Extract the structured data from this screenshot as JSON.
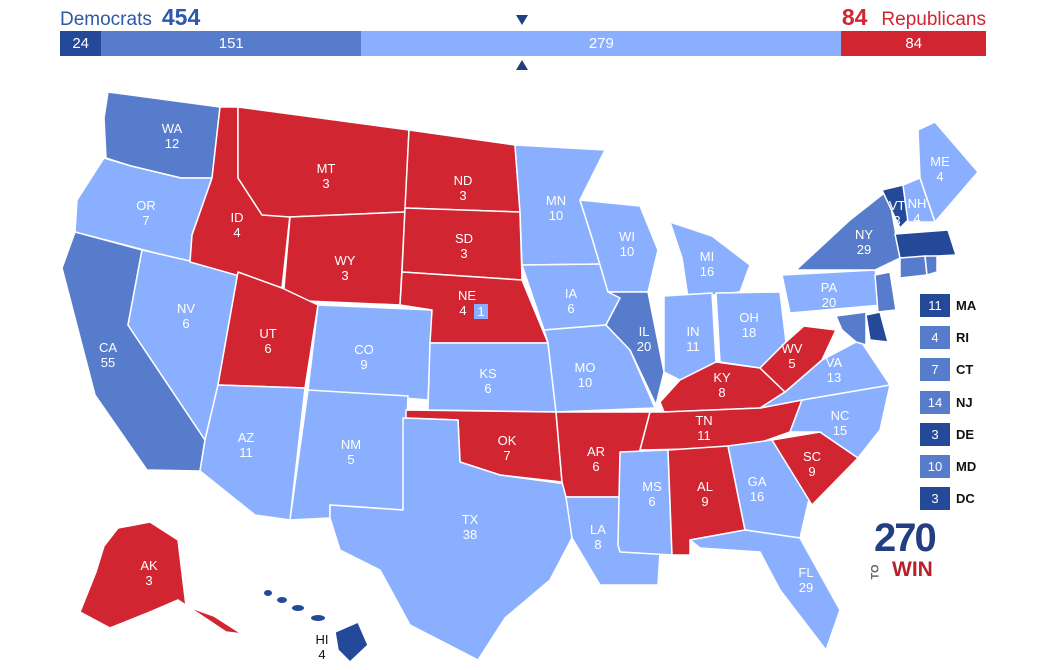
{
  "header": {
    "dem_label": "Democrats",
    "dem_total": "454",
    "rep_total": "84",
    "rep_label": "Republicans"
  },
  "bar": [
    {
      "label": "24",
      "value": 24,
      "class": "sd"
    },
    {
      "label": "151",
      "value": 151,
      "class": "ld"
    },
    {
      "label": "279",
      "value": 279,
      "class": "tu"
    },
    {
      "label": "84",
      "value": 84,
      "class": "sr"
    }
  ],
  "colors": {
    "safe_dem": "#244999",
    "likely_dem": "#577ccc",
    "lean_dem": "#8aafff",
    "safe_rep": "#d22532"
  },
  "states": [
    {
      "abbr": "WA",
      "ev": "12",
      "rating": "likely_dem"
    },
    {
      "abbr": "OR",
      "ev": "7",
      "rating": "lean_dem"
    },
    {
      "abbr": "CA",
      "ev": "55",
      "rating": "likely_dem"
    },
    {
      "abbr": "NV",
      "ev": "6",
      "rating": "lean_dem"
    },
    {
      "abbr": "ID",
      "ev": "4",
      "rating": "safe_rep"
    },
    {
      "abbr": "MT",
      "ev": "3",
      "rating": "safe_rep"
    },
    {
      "abbr": "WY",
      "ev": "3",
      "rating": "safe_rep"
    },
    {
      "abbr": "UT",
      "ev": "6",
      "rating": "safe_rep"
    },
    {
      "abbr": "AZ",
      "ev": "11",
      "rating": "lean_dem"
    },
    {
      "abbr": "CO",
      "ev": "9",
      "rating": "lean_dem"
    },
    {
      "abbr": "NM",
      "ev": "5",
      "rating": "lean_dem"
    },
    {
      "abbr": "ND",
      "ev": "3",
      "rating": "safe_rep"
    },
    {
      "abbr": "SD",
      "ev": "3",
      "rating": "safe_rep"
    },
    {
      "abbr": "NE",
      "ev": "4",
      "rating": "safe_rep",
      "district_ev": "1"
    },
    {
      "abbr": "KS",
      "ev": "6",
      "rating": "lean_dem"
    },
    {
      "abbr": "OK",
      "ev": "7",
      "rating": "safe_rep"
    },
    {
      "abbr": "TX",
      "ev": "38",
      "rating": "lean_dem"
    },
    {
      "abbr": "MN",
      "ev": "10",
      "rating": "lean_dem"
    },
    {
      "abbr": "IA",
      "ev": "6",
      "rating": "lean_dem"
    },
    {
      "abbr": "MO",
      "ev": "10",
      "rating": "lean_dem"
    },
    {
      "abbr": "AR",
      "ev": "6",
      "rating": "safe_rep"
    },
    {
      "abbr": "LA",
      "ev": "8",
      "rating": "lean_dem"
    },
    {
      "abbr": "WI",
      "ev": "10",
      "rating": "lean_dem"
    },
    {
      "abbr": "IL",
      "ev": "20",
      "rating": "likely_dem"
    },
    {
      "abbr": "MI",
      "ev": "16",
      "rating": "lean_dem"
    },
    {
      "abbr": "IN",
      "ev": "11",
      "rating": "lean_dem"
    },
    {
      "abbr": "OH",
      "ev": "18",
      "rating": "lean_dem"
    },
    {
      "abbr": "KY",
      "ev": "8",
      "rating": "safe_rep"
    },
    {
      "abbr": "TN",
      "ev": "11",
      "rating": "safe_rep"
    },
    {
      "abbr": "MS",
      "ev": "6",
      "rating": "lean_dem"
    },
    {
      "abbr": "AL",
      "ev": "9",
      "rating": "safe_rep"
    },
    {
      "abbr": "GA",
      "ev": "16",
      "rating": "lean_dem"
    },
    {
      "abbr": "FL",
      "ev": "29",
      "rating": "lean_dem"
    },
    {
      "abbr": "SC",
      "ev": "9",
      "rating": "safe_rep"
    },
    {
      "abbr": "NC",
      "ev": "15",
      "rating": "lean_dem"
    },
    {
      "abbr": "VA",
      "ev": "13",
      "rating": "lean_dem"
    },
    {
      "abbr": "WV",
      "ev": "5",
      "rating": "safe_rep"
    },
    {
      "abbr": "PA",
      "ev": "20",
      "rating": "lean_dem"
    },
    {
      "abbr": "NY",
      "ev": "29",
      "rating": "likely_dem"
    },
    {
      "abbr": "VT",
      "ev": "3",
      "rating": "safe_dem"
    },
    {
      "abbr": "NH",
      "ev": "4",
      "rating": "lean_dem"
    },
    {
      "abbr": "ME",
      "ev": "4",
      "rating": "lean_dem"
    },
    {
      "abbr": "AK",
      "ev": "3",
      "rating": "safe_rep"
    },
    {
      "abbr": "HI",
      "ev": "4",
      "rating": "safe_dem"
    }
  ],
  "legend": [
    {
      "abbr": "MA",
      "ev": "11",
      "rating": "safe_dem"
    },
    {
      "abbr": "RI",
      "ev": "4",
      "rating": "likely_dem"
    },
    {
      "abbr": "CT",
      "ev": "7",
      "rating": "likely_dem"
    },
    {
      "abbr": "NJ",
      "ev": "14",
      "rating": "likely_dem"
    },
    {
      "abbr": "DE",
      "ev": "3",
      "rating": "safe_dem"
    },
    {
      "abbr": "MD",
      "ev": "10",
      "rating": "likely_dem"
    },
    {
      "abbr": "DC",
      "ev": "3",
      "rating": "safe_dem"
    }
  ],
  "logo": {
    "top": "270",
    "side": "TO",
    "bottom": "WIN"
  }
}
